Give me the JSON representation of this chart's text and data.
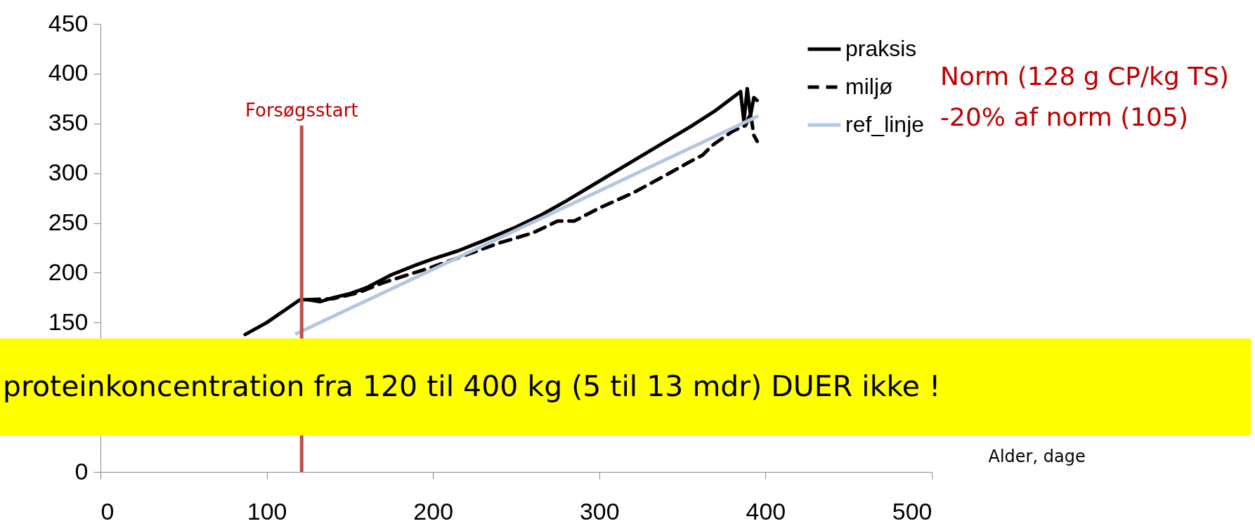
{
  "chart_data": {
    "type": "line",
    "xlabel": "Alder, dage",
    "xlim": [
      0,
      500
    ],
    "xticks": [
      0,
      100,
      200,
      300,
      400,
      500
    ],
    "ylim": [
      0,
      450
    ],
    "yticks": [
      0,
      150,
      200,
      250,
      300,
      350,
      400,
      450
    ],
    "grid": false,
    "legend": "top right",
    "marker": "none",
    "series": [
      {
        "name": "praksis",
        "color": "#000000",
        "line_style": "solid",
        "x": [
          87,
          100,
          120,
          125,
          132,
          140,
          150,
          160,
          175,
          190,
          200,
          215,
          230,
          250,
          265,
          280,
          300,
          320,
          340,
          355,
          370,
          385,
          387,
          389,
          391,
          393,
          395
        ],
        "values": [
          138,
          150,
          173,
          173,
          171,
          175,
          179,
          185,
          198,
          208,
          214,
          222,
          232,
          246,
          258,
          272,
          292,
          312,
          332,
          347,
          363,
          382,
          352,
          385,
          358,
          376,
          373
        ]
      },
      {
        "name": "miljø",
        "color": "#000000",
        "line_style": "dashed",
        "x": [
          125,
          140,
          155,
          170,
          185,
          200,
          220,
          240,
          260,
          275,
          285,
          300,
          320,
          340,
          355,
          362,
          368,
          380,
          388,
          391,
          393,
          395
        ],
        "values": [
          173,
          174,
          180,
          190,
          198,
          206,
          218,
          230,
          240,
          252,
          252,
          265,
          280,
          298,
          312,
          318,
          328,
          342,
          348,
          360,
          338,
          332
        ]
      },
      {
        "name": "ref_linje",
        "color": "#b4c7e0",
        "line_style": "solid",
        "x": [
          118,
          395
        ],
        "values": [
          139,
          357
        ]
      }
    ],
    "ref_lines": [
      {
        "axis": "x",
        "value": 121,
        "label": "Forsøgsstart",
        "color": "#c0504d"
      }
    ],
    "annotations": [
      "Norm (128 g CP/kg TS)",
      "-20% af norm (105)",
      "proteinkoncentration fra 120 til 400 kg (5 til 13 mdr) DUER ikke !"
    ]
  }
}
